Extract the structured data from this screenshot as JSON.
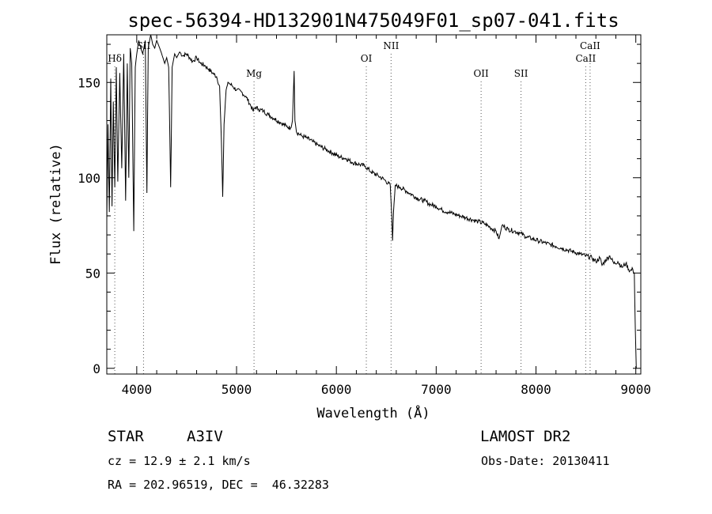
{
  "chart_data": {
    "type": "line",
    "title": "spec-56394-HD132901N475049F01_sp07-041.fits",
    "xlabel": "Wavelength (Å)",
    "ylabel": "Flux (relative)",
    "xlim": [
      3700,
      9050
    ],
    "ylim": [
      -3,
      175
    ],
    "xticks": [
      4000,
      5000,
      6000,
      7000,
      8000,
      9000
    ],
    "yticks": [
      0,
      50,
      100,
      150
    ],
    "grid": false,
    "line_color": "#000000",
    "series": [
      {
        "values": [
          [
            3700,
            78
          ],
          [
            3712,
            128
          ],
          [
            3725,
            82
          ],
          [
            3740,
            152
          ],
          [
            3752,
            85
          ],
          [
            3765,
            140
          ],
          [
            3780,
            95
          ],
          [
            3795,
            158
          ],
          [
            3810,
            98
          ],
          [
            3830,
            155
          ],
          [
            3850,
            105
          ],
          [
            3870,
            165
          ],
          [
            3889,
            88
          ],
          [
            3905,
            160
          ],
          [
            3920,
            100
          ],
          [
            3935,
            168
          ],
          [
            3950,
            160
          ],
          [
            3970,
            72
          ],
          [
            3985,
            158
          ],
          [
            4000,
            165
          ],
          [
            4020,
            172
          ],
          [
            4040,
            168
          ],
          [
            4060,
            165
          ],
          [
            4085,
            172
          ],
          [
            4102,
            92
          ],
          [
            4115,
            168
          ],
          [
            4140,
            175
          ],
          [
            4160,
            170
          ],
          [
            4180,
            168
          ],
          [
            4200,
            172
          ],
          [
            4230,
            168
          ],
          [
            4250,
            165
          ],
          [
            4280,
            160
          ],
          [
            4300,
            163
          ],
          [
            4320,
            158
          ],
          [
            4340,
            95
          ],
          [
            4355,
            158
          ],
          [
            4380,
            165
          ],
          [
            4400,
            163
          ],
          [
            4430,
            166
          ],
          [
            4460,
            164
          ],
          [
            4500,
            165
          ],
          [
            4530,
            163
          ],
          [
            4560,
            161
          ],
          [
            4600,
            163
          ],
          [
            4640,
            160
          ],
          [
            4680,
            159
          ],
          [
            4720,
            157
          ],
          [
            4760,
            155
          ],
          [
            4800,
            153
          ],
          [
            4830,
            148
          ],
          [
            4848,
            120
          ],
          [
            4861,
            90
          ],
          [
            4875,
            128
          ],
          [
            4895,
            146
          ],
          [
            4920,
            150
          ],
          [
            4960,
            148
          ],
          [
            5000,
            146
          ],
          [
            5050,
            145
          ],
          [
            5100,
            142
          ],
          [
            5140,
            138
          ],
          [
            5167,
            135
          ],
          [
            5190,
            137
          ],
          [
            5220,
            136
          ],
          [
            5270,
            135
          ],
          [
            5320,
            133
          ],
          [
            5380,
            131
          ],
          [
            5440,
            129
          ],
          [
            5500,
            127
          ],
          [
            5540,
            126
          ],
          [
            5560,
            130
          ],
          [
            5577,
            156
          ],
          [
            5585,
            130
          ],
          [
            5600,
            124
          ],
          [
            5650,
            122
          ],
          [
            5700,
            121
          ],
          [
            5760,
            119
          ],
          [
            5820,
            117
          ],
          [
            5890,
            115
          ],
          [
            5960,
            113
          ],
          [
            6030,
            111
          ],
          [
            6100,
            110
          ],
          [
            6160,
            108
          ],
          [
            6230,
            107
          ],
          [
            6290,
            106
          ],
          [
            6350,
            103
          ],
          [
            6420,
            101
          ],
          [
            6480,
            99
          ],
          [
            6540,
            96
          ],
          [
            6555,
            80
          ],
          [
            6563,
            67
          ],
          [
            6572,
            82
          ],
          [
            6590,
            96
          ],
          [
            6640,
            95
          ],
          [
            6700,
            93
          ],
          [
            6760,
            91
          ],
          [
            6820,
            89
          ],
          [
            6880,
            88
          ],
          [
            6940,
            86
          ],
          [
            7000,
            85
          ],
          [
            7060,
            83
          ],
          [
            7120,
            82
          ],
          [
            7180,
            81
          ],
          [
            7240,
            80
          ],
          [
            7300,
            79
          ],
          [
            7360,
            78
          ],
          [
            7420,
            77
          ],
          [
            7480,
            76
          ],
          [
            7540,
            74
          ],
          [
            7600,
            72
          ],
          [
            7630,
            68
          ],
          [
            7660,
            75
          ],
          [
            7720,
            73
          ],
          [
            7780,
            72
          ],
          [
            7840,
            71
          ],
          [
            7900,
            69
          ],
          [
            7960,
            68
          ],
          [
            8020,
            67
          ],
          [
            8080,
            66
          ],
          [
            8140,
            65
          ],
          [
            8200,
            64
          ],
          [
            8260,
            63
          ],
          [
            8320,
            62
          ],
          [
            8380,
            61
          ],
          [
            8440,
            60
          ],
          [
            8500,
            59
          ],
          [
            8560,
            58
          ],
          [
            8600,
            56
          ],
          [
            8640,
            58
          ],
          [
            8662,
            54
          ],
          [
            8700,
            57
          ],
          [
            8740,
            59
          ],
          [
            8780,
            55
          ],
          [
            8820,
            56
          ],
          [
            8860,
            53
          ],
          [
            8900,
            55
          ],
          [
            8940,
            51
          ],
          [
            8970,
            52
          ],
          [
            8985,
            50
          ],
          [
            8995,
            20
          ],
          [
            9005,
            0
          ]
        ]
      }
    ],
    "annotations": [
      {
        "label": "Hδ",
        "x": 3780,
        "row": "upper"
      },
      {
        "label": "SII",
        "x": 4068,
        "row": "top"
      },
      {
        "label": "Mg",
        "x": 5175,
        "row": "lower"
      },
      {
        "label": "OI",
        "x": 6300,
        "row": "upper"
      },
      {
        "label": "NII",
        "x": 6548,
        "row": "top"
      },
      {
        "label": "OII",
        "x": 7450,
        "row": "lower"
      },
      {
        "label": "SII",
        "x": 7850,
        "row": "lower"
      },
      {
        "label": "CaII",
        "x": 8498,
        "row": "upper"
      },
      {
        "label": "CaII",
        "x": 8542,
        "row": "top"
      }
    ]
  },
  "info": {
    "object_class": "STAR",
    "subclass": "A3IV",
    "survey": "LAMOST DR2",
    "cz": "cz = 12.9 ± 2.1 km/s",
    "obs_date": "Obs-Date: 20130411",
    "radec": "RA = 202.96519, DEC =  46.32283"
  }
}
